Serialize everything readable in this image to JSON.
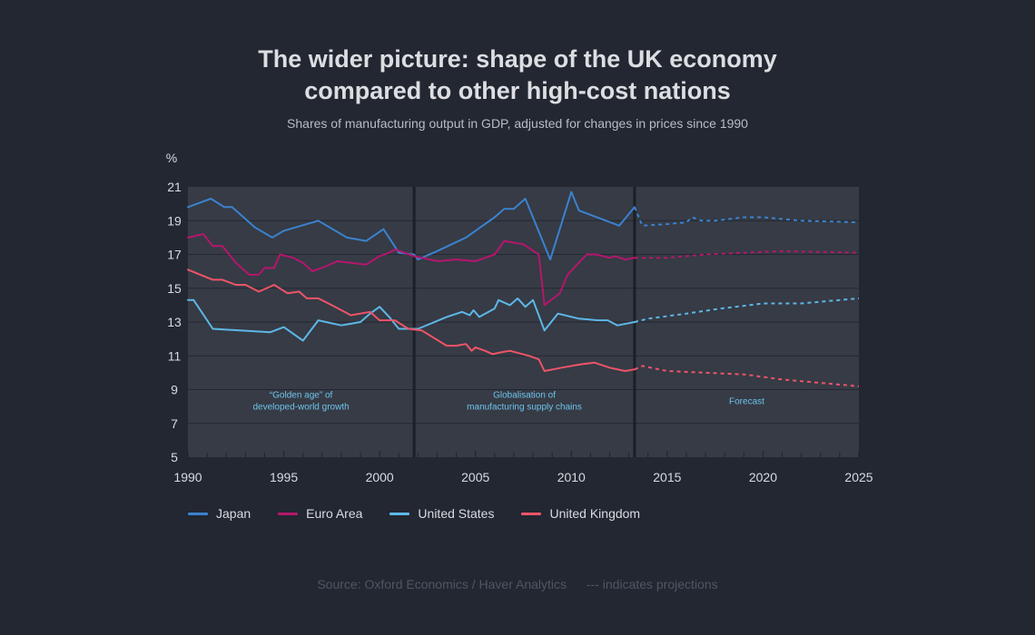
{
  "header": {
    "title_line1": "The wider picture: shape of the UK economy",
    "title_line2": "compared to other high-cost nations",
    "subtitle": "Shares of manufacturing output in GDP, adjusted for changes in prices since 1990"
  },
  "footer": {
    "source": "Source: Oxford Economics / Haver Analytics",
    "note": "--- indicates projections"
  },
  "colors": {
    "background": "#222731",
    "plot": "#363b45",
    "grid": "#222731",
    "divider": "#1b1f27",
    "annotation": "#6fc3ec"
  },
  "chart_data": {
    "type": "line",
    "title": "The wider picture: shape of the UK economy compared to other high-cost nations",
    "subtitle": "Shares of manufacturing output in GDP, adjusted for changes in prices since 1990",
    "ylabel": "%",
    "xlabel": "",
    "xlim": [
      1990,
      2025
    ],
    "ylim": [
      5,
      21
    ],
    "yticks": [
      5,
      7,
      9,
      11,
      13,
      15,
      17,
      19,
      21
    ],
    "xticks": [
      1990,
      1995,
      2000,
      2005,
      2010,
      2015,
      2020,
      2025
    ],
    "grid": true,
    "legend_position": "bottom-left",
    "projection_start": 2013.3,
    "periods": [
      {
        "label_line1": "“Golden age” of",
        "label_line2": "developed-world growth",
        "from": 1990,
        "to": 2001.8
      },
      {
        "label_line1": "Globalisation of",
        "label_line2": "manufacturing supply chains",
        "from": 2001.8,
        "to": 2013.3
      },
      {
        "label_line1": "Forecast",
        "label_line2": "",
        "from": 2013.3,
        "to": 2025
      }
    ],
    "series": [
      {
        "name": "Japan",
        "color": "#3b82cf",
        "points": [
          [
            1990,
            19.8
          ],
          [
            1991.2,
            20.3
          ],
          [
            1991.9,
            19.8
          ],
          [
            1992.3,
            19.8
          ],
          [
            1993.5,
            18.6
          ],
          [
            1994.4,
            18.0
          ],
          [
            1995,
            18.4
          ],
          [
            1996.8,
            19.0
          ],
          [
            1998.3,
            18.0
          ],
          [
            1999.3,
            17.8
          ],
          [
            2000.2,
            18.5
          ],
          [
            2001,
            17.1
          ],
          [
            2001.8,
            17.0
          ],
          [
            2002,
            16.7
          ],
          [
            2003,
            17.2
          ],
          [
            2004.5,
            18.0
          ],
          [
            2006,
            19.2
          ],
          [
            2006.5,
            19.7
          ],
          [
            2007,
            19.7
          ],
          [
            2007.6,
            20.3
          ],
          [
            2008.9,
            16.7
          ],
          [
            2010,
            20.7
          ],
          [
            2010.4,
            19.6
          ],
          [
            2012.5,
            18.7
          ],
          [
            2013.3,
            19.8
          ]
        ],
        "projection": [
          [
            2013.3,
            19.8
          ],
          [
            2013.7,
            18.7
          ],
          [
            2015,
            18.8
          ],
          [
            2016,
            18.9
          ],
          [
            2016.3,
            19.2
          ],
          [
            2016.8,
            19.0
          ],
          [
            2017.5,
            19.0
          ],
          [
            2019,
            19.2
          ],
          [
            2020,
            19.2
          ],
          [
            2022,
            19.0
          ],
          [
            2025,
            18.9
          ]
        ]
      },
      {
        "name": "Euro Area",
        "color": "#b5166d",
        "points": [
          [
            1990,
            18.0
          ],
          [
            1990.8,
            18.2
          ],
          [
            1991.3,
            17.5
          ],
          [
            1991.8,
            17.5
          ],
          [
            1992.5,
            16.5
          ],
          [
            1993.2,
            15.8
          ],
          [
            1993.7,
            15.8
          ],
          [
            1994,
            16.2
          ],
          [
            1994.5,
            16.2
          ],
          [
            1994.8,
            17.0
          ],
          [
            1995.5,
            16.8
          ],
          [
            1996,
            16.5
          ],
          [
            1996.5,
            16.0
          ],
          [
            1997.2,
            16.3
          ],
          [
            1997.8,
            16.6
          ],
          [
            1998.5,
            16.5
          ],
          [
            1999.3,
            16.4
          ],
          [
            2000,
            16.9
          ],
          [
            2000.5,
            17.1
          ],
          [
            2000.8,
            17.3
          ],
          [
            2001.3,
            17.1
          ],
          [
            2001.8,
            16.9
          ],
          [
            2002.2,
            16.8
          ],
          [
            2003,
            16.6
          ],
          [
            2004,
            16.7
          ],
          [
            2005,
            16.6
          ],
          [
            2006,
            17.0
          ],
          [
            2006.5,
            17.8
          ],
          [
            2007,
            17.7
          ],
          [
            2007.5,
            17.6
          ],
          [
            2008.3,
            17.0
          ],
          [
            2008.6,
            14.0
          ],
          [
            2009.4,
            14.7
          ],
          [
            2009.8,
            15.8
          ],
          [
            2010.3,
            16.4
          ],
          [
            2010.8,
            17.0
          ],
          [
            2011.3,
            17.0
          ],
          [
            2012,
            16.8
          ],
          [
            2012.3,
            16.9
          ],
          [
            2012.8,
            16.7
          ],
          [
            2013.3,
            16.8
          ]
        ],
        "projection": [
          [
            2013.3,
            16.8
          ],
          [
            2015,
            16.8
          ],
          [
            2017,
            17.0
          ],
          [
            2019,
            17.1
          ],
          [
            2021,
            17.2
          ],
          [
            2025,
            17.1
          ]
        ]
      },
      {
        "name": "United States",
        "color": "#5eb7e8",
        "points": [
          [
            1990,
            14.3
          ],
          [
            1990.3,
            14.3
          ],
          [
            1991.3,
            12.6
          ],
          [
            1994.3,
            12.4
          ],
          [
            1995,
            12.7
          ],
          [
            1996,
            11.9
          ],
          [
            1996.8,
            13.1
          ],
          [
            1998,
            12.8
          ],
          [
            1999,
            13.0
          ],
          [
            1999.5,
            13.5
          ],
          [
            2000,
            13.9
          ],
          [
            2000.5,
            13.3
          ],
          [
            2001,
            12.6
          ],
          [
            2001.8,
            12.6
          ],
          [
            2002,
            12.6
          ],
          [
            2003.5,
            13.3
          ],
          [
            2004.3,
            13.6
          ],
          [
            2004.7,
            13.4
          ],
          [
            2004.9,
            13.7
          ],
          [
            2005.2,
            13.3
          ],
          [
            2006,
            13.8
          ],
          [
            2006.2,
            14.3
          ],
          [
            2006.8,
            14.0
          ],
          [
            2007.2,
            14.4
          ],
          [
            2007.6,
            13.9
          ],
          [
            2008,
            14.3
          ],
          [
            2008.6,
            12.5
          ],
          [
            2009.3,
            13.5
          ],
          [
            2010.4,
            13.2
          ],
          [
            2011.4,
            13.1
          ],
          [
            2011.9,
            13.1
          ],
          [
            2012.4,
            12.8
          ],
          [
            2013.3,
            13.0
          ]
        ],
        "projection": [
          [
            2013.3,
            13.0
          ],
          [
            2014,
            13.2
          ],
          [
            2016,
            13.5
          ],
          [
            2017.8,
            13.8
          ],
          [
            2019.3,
            14.0
          ],
          [
            2020,
            14.1
          ],
          [
            2022,
            14.1
          ],
          [
            2025,
            14.4
          ]
        ]
      },
      {
        "name": "United Kingdom",
        "color": "#ee5469",
        "points": [
          [
            1990,
            16.1
          ],
          [
            1991.3,
            15.5
          ],
          [
            1991.8,
            15.5
          ],
          [
            1992.5,
            15.2
          ],
          [
            1993,
            15.2
          ],
          [
            1993.7,
            14.8
          ],
          [
            1994.5,
            15.2
          ],
          [
            1995.2,
            14.7
          ],
          [
            1995.8,
            14.8
          ],
          [
            1996.2,
            14.4
          ],
          [
            1996.8,
            14.4
          ],
          [
            1997.5,
            14.0
          ],
          [
            1998.5,
            13.4
          ],
          [
            1999.5,
            13.6
          ],
          [
            2000,
            13.1
          ],
          [
            2000.8,
            13.1
          ],
          [
            2001.5,
            12.6
          ],
          [
            2002.2,
            12.5
          ],
          [
            2003.5,
            11.6
          ],
          [
            2004,
            11.6
          ],
          [
            2004.5,
            11.7
          ],
          [
            2004.8,
            11.3
          ],
          [
            2005,
            11.5
          ],
          [
            2005.5,
            11.3
          ],
          [
            2005.9,
            11.1
          ],
          [
            2006.3,
            11.2
          ],
          [
            2006.8,
            11.3
          ],
          [
            2007.8,
            11.0
          ],
          [
            2008.3,
            10.8
          ],
          [
            2008.6,
            10.1
          ],
          [
            2009.5,
            10.3
          ],
          [
            2010.5,
            10.5
          ],
          [
            2011.2,
            10.6
          ],
          [
            2012,
            10.3
          ],
          [
            2012.8,
            10.1
          ],
          [
            2013.3,
            10.2
          ]
        ],
        "projection": [
          [
            2013.3,
            10.2
          ],
          [
            2013.7,
            10.4
          ],
          [
            2015,
            10.1
          ],
          [
            2017,
            10.0
          ],
          [
            2019,
            9.9
          ],
          [
            2021,
            9.6
          ],
          [
            2023,
            9.4
          ],
          [
            2025,
            9.2
          ]
        ]
      }
    ]
  }
}
